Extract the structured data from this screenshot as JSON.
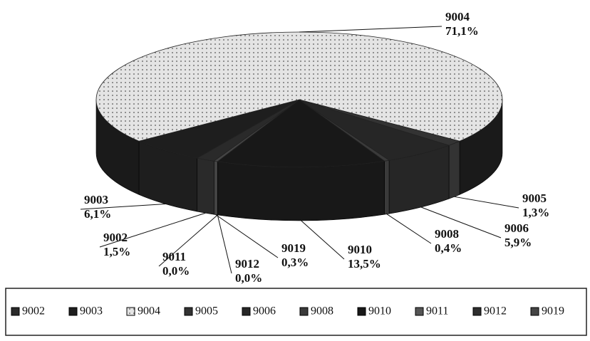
{
  "chart_data": {
    "type": "pie3d",
    "categories": [
      "9002",
      "9003",
      "9004",
      "9005",
      "9006",
      "9008",
      "9010",
      "9011",
      "9012",
      "9019"
    ],
    "values": [
      1.5,
      6.1,
      71.1,
      1.3,
      5.9,
      0.4,
      13.5,
      0.0,
      0.0,
      0.3
    ],
    "value_labels": [
      "1,5%",
      "6,1%",
      "71,1%",
      "1,3%",
      "5,9%",
      "0,4%",
      "13,5%",
      "0,0%",
      "0,0%",
      "0,3%"
    ],
    "colors": [
      "#2a2a2a",
      "#1e1e1e",
      "#e4e4e4",
      "#333333",
      "#262626",
      "#3a3a3a",
      "#181818",
      "#555555",
      "#2e2e2e",
      "#444444"
    ],
    "legend": "bottom"
  }
}
